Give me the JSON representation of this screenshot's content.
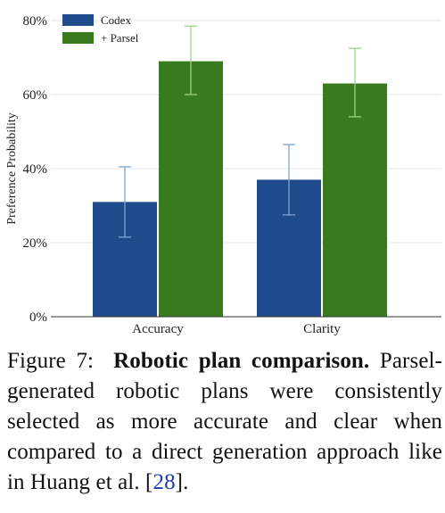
{
  "colors": {
    "codex": "#1f4a8c",
    "parsel": "#3a7a1f",
    "codex_err": "#7fa3d8",
    "parsel_err": "#9fd07f",
    "grid": "#e4e4e4",
    "axis": "#333333",
    "cite": "#1f3bb3"
  },
  "chart_data": {
    "type": "bar",
    "categories": [
      "Accuracy",
      "Clarity"
    ],
    "series": [
      {
        "name": "Codex",
        "values": [
          31,
          37
        ],
        "err_low": [
          21.5,
          27.5
        ],
        "err_high": [
          40.5,
          46.5
        ]
      },
      {
        "name": "+ Parsel",
        "values": [
          69,
          63
        ],
        "err_low": [
          60,
          54
        ],
        "err_high": [
          78.5,
          72.5
        ]
      }
    ],
    "ylabel": "Preference Probability",
    "ylim": [
      0,
      80
    ],
    "yticks": [
      0,
      20,
      40,
      60,
      80
    ],
    "ytick_labels": [
      "0%",
      "20%",
      "40%",
      "60%",
      "80%"
    ],
    "grid": true,
    "legend": "top-left"
  },
  "caption": {
    "label": "Figure 7:",
    "title": "Robotic plan comparison.",
    "body": "Parsel-generated robotic plans were consistently selected as more accurate and clear when compared to a direct generation approach like in Huang et al. [",
    "cite": "28",
    "end": "]."
  }
}
